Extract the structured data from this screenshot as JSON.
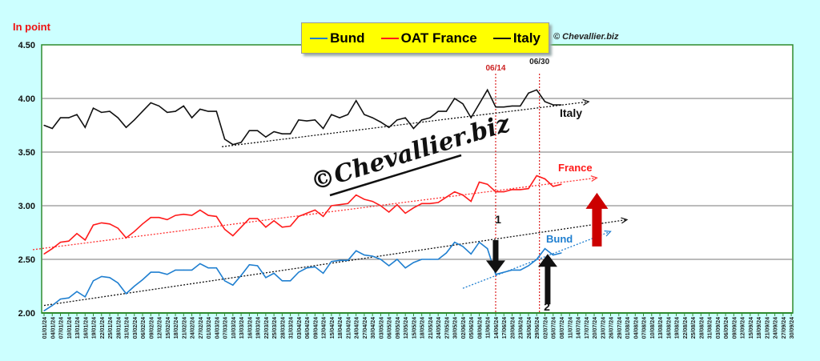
{
  "chart_data": {
    "type": "line",
    "ylabel": "In point",
    "ylim": [
      2.0,
      4.5
    ],
    "yticks": [
      "2.00",
      "2.50",
      "3.00",
      "3.50",
      "4.00",
      "4.50"
    ],
    "grid": true,
    "legend": {
      "placement": "top-center",
      "entries": [
        "Bund",
        "OAT France",
        "Italy"
      ]
    },
    "copyright": "© Chevallier.biz",
    "watermark": "©Chevallier.biz",
    "x_tick_labels": [
      "01/01/24",
      "04/01/24",
      "07/01/24",
      "10/01/24",
      "13/01/24",
      "16/01/24",
      "19/01/24",
      "22/01/24",
      "25/01/24",
      "28/01/24",
      "31/01/24",
      "03/02/24",
      "06/02/24",
      "09/02/24",
      "12/02/24",
      "15/02/24",
      "18/02/24",
      "21/02/24",
      "24/02/24",
      "27/02/24",
      "01/03/24",
      "04/03/24",
      "07/03/24",
      "10/03/24",
      "13/03/24",
      "16/03/24",
      "19/03/24",
      "22/03/24",
      "25/03/24",
      "28/03/24",
      "31/03/24",
      "03/04/24",
      "06/04/24",
      "09/04/24",
      "12/04/24",
      "15/04/24",
      "18/04/24",
      "21/04/24",
      "24/04/24",
      "27/04/24",
      "30/04/24",
      "03/05/24",
      "06/05/24",
      "09/05/24",
      "12/05/24",
      "15/05/24",
      "18/05/24",
      "21/05/24",
      "24/05/24",
      "27/05/24",
      "30/05/24",
      "02/06/24",
      "05/06/24",
      "08/06/24",
      "11/06/24",
      "14/06/24",
      "17/06/24",
      "20/06/24",
      "23/06/24",
      "26/06/24",
      "29/06/24",
      "02/07/24",
      "05/07/24",
      "08/07/24",
      "11/07/24",
      "14/07/24",
      "17/07/24",
      "20/07/24",
      "23/07/24",
      "26/07/24",
      "29/07/24",
      "01/08/24",
      "04/08/24",
      "07/08/24",
      "10/08/24",
      "13/08/24",
      "16/08/24",
      "19/08/24",
      "22/08/24",
      "25/08/24",
      "28/08/24",
      "31/08/24",
      "03/09/24",
      "06/09/24",
      "09/09/24",
      "12/09/24",
      "15/09/24",
      "18/09/24",
      "21/09/24",
      "24/09/24",
      "27/09/24",
      "30/09/24"
    ],
    "series": [
      {
        "name": "Bund",
        "color": "#1f7fd0",
        "values": [
          2.02,
          2.07,
          2.13,
          2.14,
          2.2,
          2.15,
          2.3,
          2.34,
          2.33,
          2.28,
          2.18,
          2.25,
          2.31,
          2.38,
          2.38,
          2.36,
          2.4,
          2.4,
          2.4,
          2.46,
          2.42,
          2.42,
          2.3,
          2.26,
          2.35,
          2.45,
          2.44,
          2.33,
          2.37,
          2.3,
          2.3,
          2.38,
          2.42,
          2.43,
          2.37,
          2.48,
          2.49,
          2.49,
          2.58,
          2.54,
          2.53,
          2.5,
          2.44,
          2.5,
          2.42,
          2.47,
          2.5,
          2.5,
          2.5,
          2.56,
          2.66,
          2.62,
          2.55,
          2.66,
          2.6,
          2.36,
          2.38,
          2.4,
          2.4,
          2.44,
          2.5,
          2.6,
          2.54,
          2.56
        ]
      },
      {
        "name": "OAT France",
        "color": "#ff1a1a",
        "values": [
          2.55,
          2.6,
          2.66,
          2.67,
          2.74,
          2.68,
          2.82,
          2.84,
          2.83,
          2.79,
          2.7,
          2.76,
          2.83,
          2.89,
          2.89,
          2.87,
          2.91,
          2.92,
          2.91,
          2.96,
          2.91,
          2.9,
          2.78,
          2.72,
          2.8,
          2.88,
          2.88,
          2.8,
          2.86,
          2.8,
          2.81,
          2.9,
          2.93,
          2.96,
          2.9,
          3.0,
          3.01,
          3.02,
          3.1,
          3.06,
          3.04,
          3.0,
          2.94,
          3.01,
          2.93,
          2.98,
          3.02,
          3.02,
          3.03,
          3.08,
          3.13,
          3.1,
          3.04,
          3.22,
          3.2,
          3.13,
          3.13,
          3.15,
          3.15,
          3.16,
          3.28,
          3.25,
          3.18,
          3.2
        ]
      },
      {
        "name": "Italy",
        "color": "#111111",
        "values": [
          3.75,
          3.72,
          3.82,
          3.82,
          3.85,
          3.73,
          3.91,
          3.87,
          3.88,
          3.82,
          3.73,
          3.8,
          3.88,
          3.96,
          3.93,
          3.87,
          3.88,
          3.93,
          3.82,
          3.9,
          3.88,
          3.88,
          3.62,
          3.57,
          3.59,
          3.7,
          3.7,
          3.64,
          3.69,
          3.67,
          3.67,
          3.8,
          3.79,
          3.8,
          3.72,
          3.85,
          3.82,
          3.85,
          3.98,
          3.85,
          3.82,
          3.78,
          3.73,
          3.8,
          3.82,
          3.72,
          3.8,
          3.82,
          3.88,
          3.88,
          4.0,
          3.95,
          3.82,
          3.95,
          4.08,
          3.92,
          3.92,
          3.93,
          3.93,
          4.05,
          4.08,
          3.97,
          3.94,
          3.94
        ]
      }
    ],
    "trendlines": [
      {
        "series": "Italy",
        "color": "#111111",
        "from": [
          "06/03/24",
          3.55
        ],
        "to": [
          "18/07/24",
          3.97
        ]
      },
      {
        "series": "OAT France",
        "color": "#ff3333",
        "from": [
          "01/01/24",
          2.59
        ],
        "to": [
          "21/07/24",
          3.26
        ]
      },
      {
        "series": "Bund",
        "color": "#111111",
        "from": [
          "01/01/24",
          2.07
        ],
        "to": [
          "01/08/24",
          2.87
        ]
      },
      {
        "series": "Bund",
        "color": "#1f7fd0",
        "from": [
          "02/06/24",
          2.23
        ],
        "to": [
          "26/07/24",
          2.76
        ]
      }
    ],
    "vlines": [
      {
        "label": "06/14",
        "date": "14/06/24",
        "color": "#dd2222"
      },
      {
        "label": "06/30",
        "date": "30/06/24",
        "color": "#dd2222"
      }
    ],
    "annotations": [
      {
        "text": "Italy",
        "color": "#111111"
      },
      {
        "text": "France",
        "color": "#ff1a1a"
      },
      {
        "text": "Bund",
        "color": "#1f7fd0"
      },
      {
        "text": "1",
        "color": "#111111"
      },
      {
        "text": "2",
        "color": "#111111"
      }
    ],
    "arrows": [
      {
        "direction": "down",
        "color": "#111111",
        "date": "14/06/24",
        "from": 2.68,
        "to": 2.37
      },
      {
        "direction": "up",
        "color": "#111111",
        "date": "03/07/24",
        "from": 2.08,
        "to": 2.55
      },
      {
        "direction": "up",
        "color": "#cc0000",
        "date": "21/07/24",
        "from": 2.62,
        "to": 3.12
      }
    ]
  }
}
